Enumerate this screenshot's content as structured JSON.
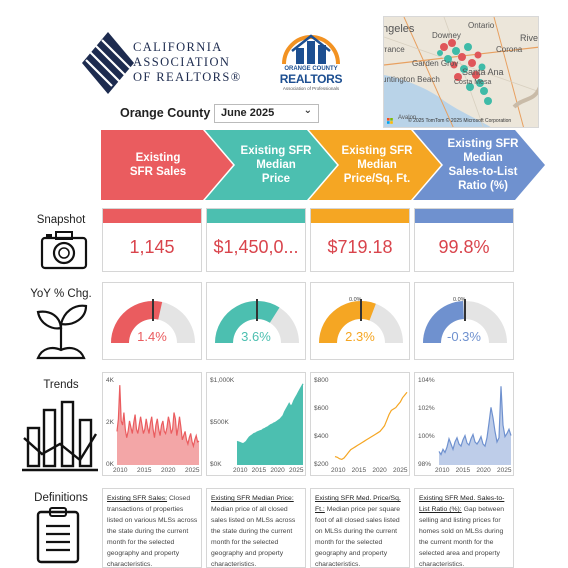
{
  "header": {
    "car_logo_lines": [
      "CALIFORNIA",
      "ASSOCIATION",
      "OF REALTORS®"
    ],
    "ocr_logo": {
      "line1": "ORANGE COUNTY",
      "line2": "REALTORS",
      "line3": "Association of Professionals"
    }
  },
  "map": {
    "labels": [
      "ngeles",
      "Downey",
      "Ontario",
      "Rivers",
      "rrance",
      "Corona",
      "Garden Grov",
      "Santa Ana",
      "untington Beach",
      "Costa Mesa",
      "Avalon"
    ],
    "copyright": "© 2025 TomTom  © 2025 Microsoft Corporation"
  },
  "filters": {
    "region": "Orange County",
    "month": "June 2025"
  },
  "metrics": [
    {
      "header": [
        "Existing",
        "SFR Sales"
      ],
      "color": "#ea5c5f"
    },
    {
      "header": [
        "Existing SFR",
        "Median",
        "Price"
      ],
      "color": "#4cbfb0"
    },
    {
      "header": [
        "Existing SFR",
        "Median",
        "Price/Sq. Ft."
      ],
      "color": "#f5a623"
    },
    {
      "header": [
        "Existing SFR",
        "Median",
        "Sales-to-List",
        "Ratio (%)"
      ],
      "color": "#6f91cf"
    }
  ],
  "row_labels": {
    "snapshot": "Snapshot",
    "yoy": "YoY % Chg.",
    "trends": "Trends",
    "definitions": "Definitions"
  },
  "snapshot": [
    "1,145",
    "$1,450,0...",
    "$719.18",
    "99.8%"
  ],
  "yoy": [
    {
      "value": "1.4%",
      "change": 1.4,
      "color": "#ea5c5f",
      "zero_label": ""
    },
    {
      "value": "3.6%",
      "change": 3.6,
      "color": "#4cbfb0",
      "zero_label": ""
    },
    {
      "value": "2.3%",
      "change": 2.3,
      "color": "#f5a623",
      "zero_label": "0.0%"
    },
    {
      "value": "-0.3%",
      "change": -0.3,
      "color": "#6f91cf",
      "zero_label": "0.0%"
    }
  ],
  "chart_data": [
    {
      "type": "area",
      "x_ticks": [
        "2010",
        "2015",
        "2020",
        "2025"
      ],
      "y_ticks": [
        "0K",
        "2K",
        "4K"
      ],
      "ylim": [
        0,
        4000
      ],
      "series": [
        {
          "values": [
            1600,
            2200,
            3800,
            2100,
            1900,
            2500,
            1700,
            1300,
            1600,
            2100,
            1800,
            1500,
            2000,
            2400,
            1700,
            1500,
            1900,
            2300,
            1900,
            1500,
            1700,
            2200,
            1800,
            1500,
            2000,
            2300,
            1700,
            1300,
            1900,
            2200,
            1700,
            1400,
            1900,
            2100,
            1600,
            1500,
            1800,
            2300,
            2000,
            1500,
            1700,
            2500,
            2200,
            1400,
            1800,
            2300,
            1800,
            1200,
            1400,
            1600,
            1200,
            1000,
            1300,
            1500,
            1100,
            900,
            1200,
            1400,
            1100,
            1145
          ]
        }
      ]
    },
    {
      "type": "area",
      "x_ticks": [
        "2010",
        "2015",
        "2020",
        "2025"
      ],
      "y_ticks": [
        "$0K",
        "$500K",
        "$1,000K"
      ],
      "ylim": [
        0,
        1500000
      ],
      "series": [
        {
          "values": [
            420000,
            410000,
            400000,
            390000,
            380000,
            400000,
            420000,
            460000,
            500000,
            520000,
            540000,
            560000,
            570000,
            590000,
            600000,
            610000,
            620000,
            640000,
            650000,
            670000,
            680000,
            700000,
            720000,
            730000,
            750000,
            760000,
            780000,
            800000,
            820000,
            850000,
            880000,
            950000,
            1000000,
            1050000,
            1100000,
            1050000,
            1080000,
            1150000,
            1200000,
            1250000,
            1300000,
            1350000,
            1400000,
            1450000
          ]
        }
      ]
    },
    {
      "type": "line",
      "x_ticks": [
        "2010",
        "2015",
        "2020",
        "2025"
      ],
      "y_ticks": [
        "$200",
        "$400",
        "$600",
        "$800"
      ],
      "ylim": [
        200,
        800
      ],
      "series": [
        {
          "values": [
            260,
            255,
            245,
            240,
            250,
            270,
            290,
            310,
            320,
            330,
            340,
            350,
            360,
            370,
            380,
            390,
            400,
            410,
            420,
            430,
            440,
            460,
            480,
            520,
            560,
            590,
            600,
            610,
            630,
            650,
            680,
            700,
            719
          ]
        }
      ]
    },
    {
      "type": "area",
      "x_ticks": [
        "2010",
        "2015",
        "2020",
        "2025"
      ],
      "y_ticks": [
        "98%",
        "100%",
        "102%",
        "104%"
      ],
      "ylim": [
        97,
        105
      ],
      "series": [
        {
          "values": [
            98.3,
            98.0,
            98.5,
            98.2,
            98.7,
            99.5,
            99.0,
            98.5,
            99.2,
            99.6,
            99.0,
            98.8,
            99.4,
            99.8,
            99.1,
            98.9,
            99.5,
            99.9,
            99.2,
            99.0,
            99.3,
            99.7,
            99.0,
            98.8,
            99.6,
            101.0,
            102.5,
            101.5,
            100.2,
            99.2,
            99.6,
            104.5,
            100.8,
            99.7,
            100.0,
            100.4,
            99.8
          ]
        }
      ]
    }
  ],
  "definitions": [
    {
      "term": "Existing SFR Sales:",
      "text": " Closed transactions of properties listed on various MLSs across the state during the current month for the selected geography and property characteristics."
    },
    {
      "term": "Existing SFR Median Price:",
      "text": " Median price of all closed sales listed on MLSs across the state during the current month for the selected geography and property characteristics."
    },
    {
      "term": "Existing SFR Med. Price/Sq. Ft.:",
      "text": " Median price per square foot of all closed sales listed on MLSs during the current month for the selected geography and property characteristics."
    },
    {
      "term": "Existing SFR Med. Sales-to-List Ratio (%):",
      "text": " Gap between selling and listing prices for homes sold on MLSs during the current month for the selected area and property characteristics."
    }
  ]
}
